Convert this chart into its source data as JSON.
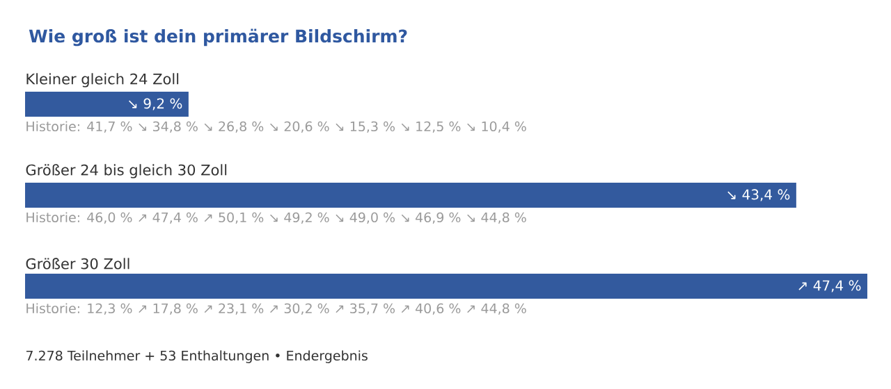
{
  "chart_data": {
    "type": "bar",
    "orientation": "horizontal",
    "title": "Wie groß ist dein primärer Bildschirm?",
    "categories": [
      "Kleiner gleich 24 Zoll",
      "Größer 24 bis gleich 30 Zoll",
      "Größer 30 Zoll"
    ],
    "values": [
      9.2,
      43.4,
      47.4
    ],
    "color": "#335a9e",
    "value_labels": [
      "↘ 9,2 %",
      "↘ 43,4 %",
      "↗ 47,4 %"
    ],
    "annotations": [
      "Historie: 41,7 % ↘ 34,8 % ↘ 26,8 % ↘ 20,6 % ↘ 15,3 % ↘ 12,5 % ↘ 10,4 %",
      "Historie: 46,0 % ↗ 47,4 % ↗ 50,1 % ↘ 49,2 % ↘ 49,0 % ↘ 46,9 % ↘ 44,8 %",
      "Historie: 12,3 % ↗ 17,8 % ↗ 23,1 % ↗ 30,2 % ↗ 35,7 % ↗ 40,6 % ↗ 44,8 %",
      "7.278 Teilnehmer  +  53 Enthaltungen  •  Endergebnis"
    ]
  }
}
